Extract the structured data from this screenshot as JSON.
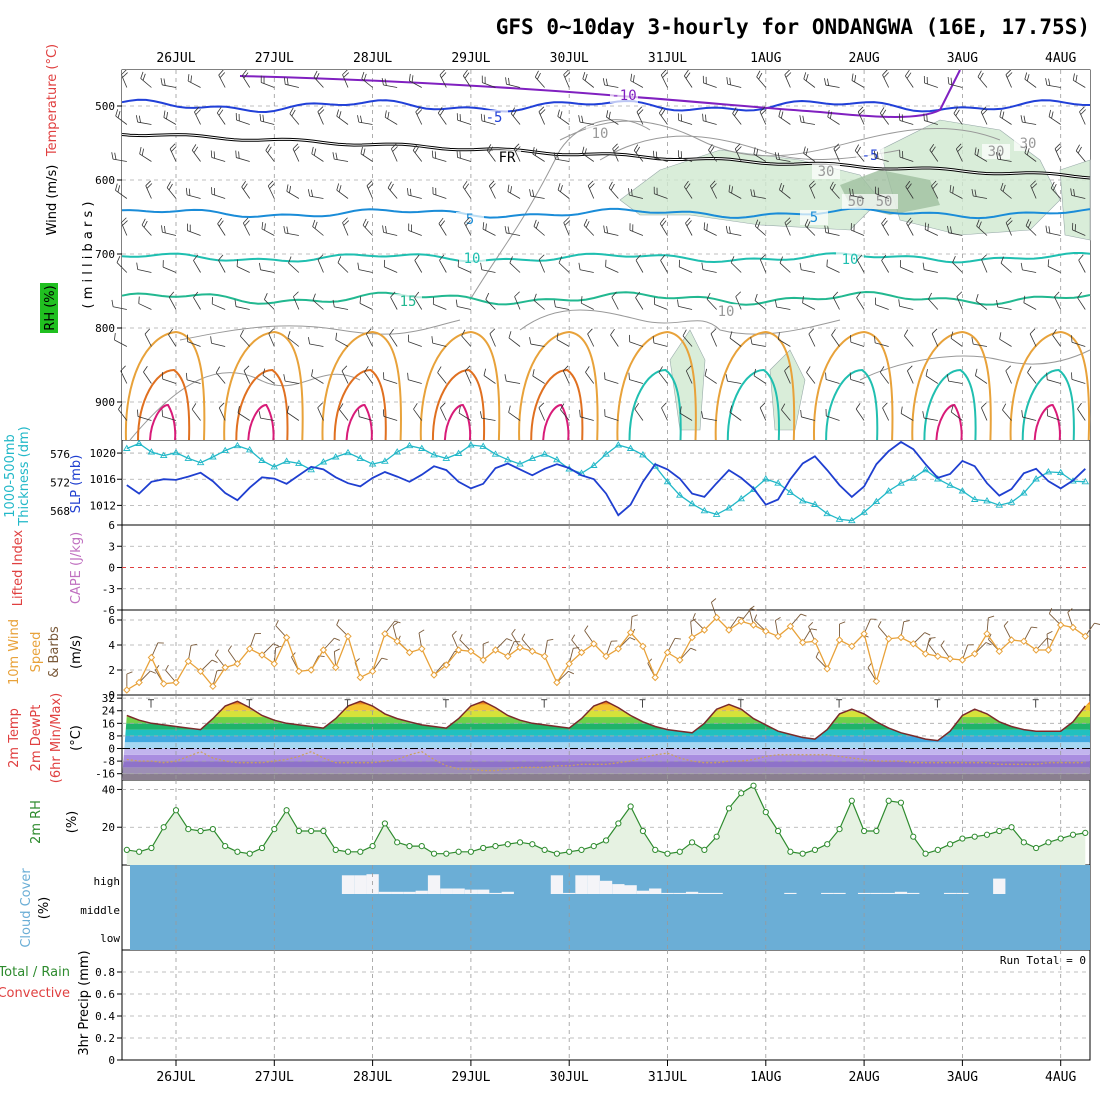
{
  "title": "GFS 0~10day 3-hourly for ONDANGWA (16E, 17.75S)",
  "dates": [
    "26JUL",
    "27JUL",
    "28JUL",
    "29JUL",
    "30JUL",
    "31JUL",
    "1AUG",
    "2AUG",
    "3AUG",
    "4AUG"
  ],
  "colors": {
    "temp_line": "#1a8cd8",
    "thickness": "#22b8c8",
    "slp": "#1f3fd0",
    "wind": "#e8a23a",
    "cloud": "#6baed6",
    "rh": "#2e8b2e",
    "freezing": "#000000"
  },
  "panels": {
    "upper": {
      "label_wind": "Wind (m/s)",
      "label_temp": "Temperature (°C)",
      "label_rh": "RH (%)",
      "axis_label": "( m i l l i b a r s )",
      "levels": [
        "500",
        "600",
        "700",
        "800",
        "900"
      ],
      "contour_labels": [
        "-10",
        "-5",
        "-5",
        "FR",
        "5",
        "5",
        "10",
        "10",
        "15",
        "10",
        "30",
        "50",
        "10",
        "30",
        "50",
        "30"
      ]
    },
    "pressure": {
      "label_thick": "1000-500mb",
      "label_thick2": "Thickness (dm)",
      "label_slp": "SLP (mb)",
      "thick_ticks": [
        "576",
        "572",
        "568"
      ],
      "slp_ticks": [
        "1020",
        "1016",
        "1012"
      ]
    },
    "stability": {
      "label_li": "Lifted Index",
      "label_cape": "CAPE (J/kg)",
      "ticks": [
        "6",
        "3",
        "0",
        "-3",
        "-6"
      ]
    },
    "wind10": {
      "label_1": "10m Wind",
      "label_2": "Speed",
      "label_3": "& Barbs",
      "label_units": "(m/s)",
      "ticks": [
        "6",
        "4",
        "2",
        "0"
      ]
    },
    "temp2m": {
      "label_1": "2m Temp",
      "label_2": "2m DewPt",
      "label_3": "(6hr Min/Max)",
      "label_units": "(°C)",
      "ticks": [
        "32",
        "24",
        "16",
        "8",
        "0",
        "-8",
        "-16"
      ]
    },
    "rh2m": {
      "label_1": "2m RH",
      "label_units": "(%)",
      "ticks": [
        "40",
        "20"
      ]
    },
    "cloud": {
      "label_1": "Cloud Cover",
      "label_units": "(%)",
      "levels": [
        "high",
        "middle",
        "low"
      ]
    },
    "precip": {
      "label_1": "Total / Rain",
      "label_2": "Convective",
      "label_3": "3hr Precip (mm)",
      "run_total": "Run Total = 0",
      "ticks": [
        "0.8",
        "0.6",
        "0.4",
        "0.2",
        "0"
      ]
    }
  },
  "chart_data": [
    {
      "type": "line",
      "title": "1000-500mb Thickness (dm)",
      "ylim": [
        566,
        578
      ],
      "x_start": "25JUL 12Z",
      "x_step_hours": 3,
      "values": [
        576.8,
        577.5,
        576.3,
        575.8,
        576.2,
        575.4,
        574.8,
        575.6,
        576.5,
        577.2,
        576.6,
        575.1,
        574.2,
        575.0,
        574.7,
        573.8,
        574.9,
        575.6,
        576.2,
        575.4,
        574.6,
        575.0,
        576.3,
        577.2,
        576.8,
        575.9,
        575.4,
        576.1,
        577.3,
        577.1,
        576.0,
        575.2,
        574.6,
        575.4,
        576.0,
        575.2,
        573.9,
        573.3,
        574.4,
        576.0,
        577.3,
        576.8,
        575.9,
        574.3,
        572.1,
        570.2,
        569.0,
        568.0,
        567.5,
        568.4,
        569.7,
        571.0,
        572.5,
        571.9,
        570.6,
        569.4,
        568.9,
        567.6,
        566.8,
        566.6,
        567.8,
        569.3,
        570.8,
        571.9,
        572.6,
        573.8,
        572.5,
        571.6,
        570.8,
        569.6,
        569.4,
        568.8,
        569.2,
        570.5,
        572.5,
        573.5,
        573.4,
        572.2,
        572.1,
        572.0,
        571.4,
        572.2,
        574.1,
        575.6,
        574.9,
        573.9,
        574.8,
        575.8,
        576.3,
        575.2,
        574.8,
        575.3
      ]
    },
    {
      "type": "line",
      "title": "SLP (mb)",
      "ylim": [
        1009,
        1022
      ],
      "x_start": "25JUL 12Z",
      "x_step_hours": 3,
      "values": [
        1015.1,
        1013.8,
        1015.6,
        1016.0,
        1015.9,
        1016.4,
        1017.0,
        1015.7,
        1013.9,
        1012.8,
        1014.7,
        1016.3,
        1016.1,
        1015.3,
        1016.6,
        1017.9,
        1017.5,
        1016.3,
        1015.4,
        1014.9,
        1016.2,
        1017.1,
        1016.4,
        1015.6,
        1016.7,
        1018.0,
        1017.4,
        1015.6,
        1014.6,
        1015.3,
        1017.7,
        1018.4,
        1017.5,
        1016.6,
        1017.6,
        1018.3,
        1017.7,
        1016.6,
        1016.0,
        1013.8,
        1010.5,
        1012.1,
        1015.6,
        1018.3,
        1017.5,
        1016.1,
        1013.8,
        1013.3,
        1015.4,
        1017.4,
        1016.2,
        1014.6,
        1012.1,
        1012.9,
        1016.0,
        1018.4,
        1019.5,
        1017.4,
        1015.1,
        1013.3,
        1014.9,
        1018.3,
        1020.3,
        1021.7,
        1020.6,
        1018.3,
        1016.2,
        1016.8,
        1018.8,
        1018.0,
        1015.4,
        1013.5,
        1014.5,
        1016.9,
        1017.6,
        1015.7,
        1014.6,
        1015.8,
        1017.6,
        1017.3,
        1015.4,
        1014.2,
        1015.6,
        1017.0,
        1017.3,
        1015.9,
        1015.3,
        1016.3,
        1017.6,
        1018.9,
        1018.3,
        1019.0
      ]
    },
    {
      "type": "line",
      "title": "10m Wind Speed (m/s)",
      "ylim": [
        0,
        6.8
      ],
      "x_start": "25JUL 12Z",
      "x_step_hours": 3,
      "values": [
        0.4,
        1.0,
        3.0,
        0.9,
        1.0,
        2.7,
        1.9,
        0.7,
        2.2,
        2.5,
        3.7,
        3.2,
        2.5,
        4.6,
        1.9,
        2.0,
        3.6,
        2.2,
        4.7,
        1.4,
        1.9,
        4.9,
        4.3,
        3.4,
        3.7,
        1.6,
        2.4,
        3.6,
        3.5,
        2.8,
        3.6,
        3.1,
        3.8,
        3.5,
        3.1,
        1.0,
        2.5,
        3.4,
        4.1,
        3.1,
        3.7,
        5.0,
        3.9,
        1.4,
        3.4,
        2.8,
        4.6,
        5.2,
        6.2,
        5.2,
        5.9,
        5.6,
        5.1,
        4.7,
        5.5,
        4.2,
        4.3,
        2.1,
        4.4,
        3.9,
        4.9,
        1.1,
        4.5,
        4.6,
        4.1,
        3.3,
        3.1,
        2.9,
        2.8,
        3.3,
        4.9,
        3.5,
        4.4,
        4.3,
        3.6,
        3.6,
        5.6,
        5.4,
        4.7,
        4.8,
        4.9,
        4.6,
        4.8,
        6.4,
        4.2,
        4.2,
        4.4,
        3.7,
        4.5,
        4.1,
        3.5,
        3.2
      ]
    },
    {
      "type": "area",
      "title": "2m Temp (°C)",
      "ylim": [
        -20,
        34
      ],
      "x_start": "25JUL 12Z",
      "x_step_hours": 3,
      "values": [
        21,
        18,
        16,
        15,
        14,
        13,
        12,
        19,
        27,
        30,
        26,
        21,
        18,
        16,
        15,
        14,
        13,
        19,
        27,
        30,
        27,
        22,
        19,
        17,
        15,
        14,
        13,
        19,
        27,
        30,
        26,
        21,
        18,
        16,
        15,
        14,
        13,
        19,
        27,
        30,
        26,
        21,
        17,
        14,
        12,
        11,
        10,
        16,
        25,
        28,
        25,
        19,
        15,
        11,
        9,
        7,
        6,
        12,
        22,
        25,
        22,
        17,
        13,
        10,
        8,
        6,
        5,
        11,
        21,
        25,
        22,
        17,
        14,
        12,
        11,
        11,
        11,
        17,
        27,
        30,
        26,
        21,
        17,
        15,
        14,
        13,
        13,
        20,
        27,
        31,
        27,
        22,
        18,
        15,
        13,
        13
      ]
    },
    {
      "type": "line",
      "title": "2m DewPt (°C)",
      "ylim": [
        -20,
        34
      ],
      "x_start": "25JUL 12Z",
      "x_step_hours": 3,
      "values": [
        -7,
        -8,
        -8,
        -9,
        -8,
        -5,
        -2,
        -6,
        -8,
        -9,
        -9,
        -9,
        -8,
        -7,
        -5,
        -2,
        -6,
        -9,
        -9,
        -9,
        -9,
        -8,
        -7,
        -4,
        -2,
        -7,
        -11,
        -13,
        -13,
        -14,
        -14,
        -13,
        -12,
        -12,
        -12,
        -11,
        -11,
        -10,
        -10,
        -10,
        -9,
        -8,
        -6,
        -4,
        -3,
        -6,
        -8,
        -9,
        -9,
        -8,
        -8,
        -7,
        -5,
        -4,
        -4,
        -4,
        -4,
        -4,
        -5,
        -6,
        -7,
        -8,
        -8,
        -8,
        -9,
        -9,
        -9,
        -9,
        -9,
        -9,
        -9,
        -10,
        -10,
        -10,
        -10,
        -9,
        -9,
        -9,
        -9,
        -9,
        -9,
        -8,
        -8,
        -8,
        -8,
        -8,
        -8,
        -8,
        -8,
        -8,
        -8,
        -8
      ]
    },
    {
      "type": "area",
      "title": "2m RH (%)",
      "ylim": [
        0,
        45
      ],
      "x_start": "25JUL 12Z",
      "x_step_hours": 3,
      "values": [
        8,
        7,
        9,
        20,
        29,
        19,
        18,
        19,
        10,
        7,
        6,
        9,
        19,
        29,
        18,
        18,
        18,
        8,
        7,
        7,
        10,
        22,
        12,
        10,
        10,
        6,
        6,
        7,
        7,
        9,
        10,
        11,
        12,
        11,
        8,
        6,
        7,
        8,
        10,
        13,
        22,
        31,
        18,
        8,
        6,
        7,
        12,
        8,
        15,
        30,
        38,
        42,
        28,
        18,
        7,
        6,
        8,
        11,
        19,
        34,
        18,
        18,
        34,
        33,
        15,
        6,
        8,
        11,
        14,
        15,
        16,
        18,
        20,
        12,
        9,
        12,
        14,
        16,
        17,
        19,
        18,
        9,
        8,
        8,
        10,
        14,
        17,
        19,
        22,
        23
      ]
    },
    {
      "type": "bar",
      "title": "High Cloud Cover (%)",
      "ylim": [
        0,
        100
      ],
      "x_start": "25JUL 12Z",
      "x_step_hours": 3,
      "values": [
        0,
        0,
        0,
        0,
        0,
        0,
        0,
        0,
        0,
        0,
        0,
        0,
        0,
        0,
        0,
        0,
        0,
        0,
        85,
        85,
        90,
        10,
        10,
        10,
        15,
        85,
        25,
        25,
        20,
        20,
        5,
        10,
        0,
        0,
        0,
        85,
        5,
        85,
        85,
        60,
        45,
        40,
        15,
        25,
        5,
        5,
        10,
        5,
        5,
        0,
        0,
        0,
        0,
        0,
        5,
        0,
        0,
        5,
        5,
        0,
        5,
        5,
        5,
        10,
        5,
        0,
        0,
        5,
        5,
        0,
        0,
        70,
        0,
        0,
        0,
        0,
        0,
        0,
        0,
        0,
        0,
        0,
        0,
        0,
        0,
        0,
        0,
        0,
        0,
        0,
        0,
        0,
        10,
        0,
        0,
        0
      ]
    },
    {
      "type": "bar",
      "title": "3hr Precip (mm)",
      "ylim": [
        0,
        1
      ],
      "x_start": "25JUL 12Z",
      "x_step_hours": 3,
      "values": [
        0,
        0,
        0,
        0,
        0,
        0,
        0,
        0,
        0,
        0,
        0,
        0,
        0,
        0,
        0,
        0,
        0,
        0,
        0,
        0,
        0,
        0,
        0,
        0,
        0,
        0,
        0,
        0,
        0,
        0,
        0,
        0,
        0,
        0,
        0,
        0,
        0,
        0,
        0,
        0,
        0,
        0,
        0,
        0,
        0,
        0,
        0,
        0,
        0,
        0,
        0,
        0,
        0,
        0,
        0,
        0,
        0,
        0,
        0,
        0,
        0,
        0,
        0,
        0,
        0,
        0,
        0,
        0,
        0,
        0,
        0,
        0,
        0,
        0,
        0,
        0,
        0,
        0,
        0,
        0,
        0,
        0,
        0,
        0,
        0,
        0,
        0,
        0,
        0,
        0,
        0,
        0
      ]
    }
  ]
}
